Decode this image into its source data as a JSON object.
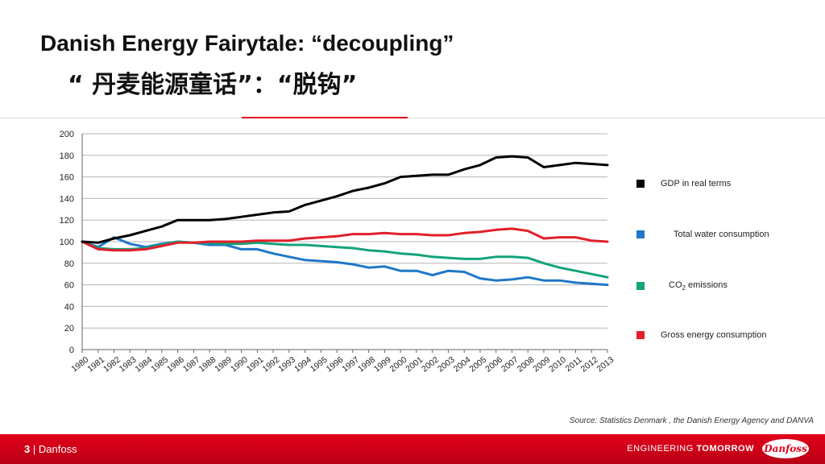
{
  "slide": {
    "title": "Danish Energy Fairytale: “decoupling”",
    "subtitle": "“ 丹麦能源童话”：“脱钩”",
    "source": "Source:  Statistics Denmark , the Danish Energy Agency and DANVA",
    "page_number": "3",
    "separator": "|",
    "company": "Danfoss",
    "tagline_light": "ENGINEERING ",
    "tagline_bold": "TOMORROW",
    "logo_text": "Danfoss"
  },
  "colors": {
    "accent": "#e2001a",
    "gdp": "#000000",
    "water": "#1f77c8",
    "co2": "#13a37a",
    "energy": "#e0202a"
  },
  "chart_data": {
    "type": "line",
    "title": "",
    "xlabel": "",
    "ylabel": "",
    "ylim": [
      0,
      200
    ],
    "yticks": [
      0,
      20,
      40,
      60,
      80,
      100,
      120,
      140,
      160,
      180,
      200
    ],
    "grid": true,
    "legend_position": "right",
    "x": [
      "1980",
      "1981",
      "1982",
      "1983",
      "1984",
      "1985",
      "1986",
      "1987",
      "1988",
      "1989",
      "1990",
      "1991",
      "1992",
      "1993",
      "1994",
      "1995",
      "1996",
      "1997",
      "1998",
      "1999",
      "2000",
      "2001",
      "2002",
      "2003",
      "2004",
      "2005",
      "2006",
      "2007",
      "2008",
      "2009",
      "2010",
      "2011",
      "2012",
      "2013"
    ],
    "series": [
      {
        "name": "GDP in real terms",
        "color": "#000000",
        "values": [
          100,
          99,
          103,
          106,
          110,
          114,
          120,
          120,
          120,
          121,
          123,
          125,
          127,
          128,
          134,
          138,
          142,
          147,
          150,
          154,
          160,
          161,
          162,
          162,
          167,
          171,
          178,
          179,
          178,
          169,
          171,
          173,
          172,
          171
        ]
      },
      {
        "name": "Total water consumption",
        "color": "#1f77c8",
        "values": [
          100,
          95,
          104,
          98,
          95,
          98,
          100,
          99,
          97,
          97,
          93,
          93,
          89,
          86,
          83,
          82,
          81,
          79,
          76,
          77,
          73,
          73,
          69,
          73,
          72,
          66,
          64,
          65,
          67,
          64,
          64,
          62,
          61,
          60
        ]
      },
      {
        "name": "CO2 emissions",
        "name_main": "CO",
        "name_sub": "2",
        "name_rest": " emissions",
        "color": "#13a37a",
        "values": [
          100,
          94,
          93,
          93,
          94,
          97,
          100,
          99,
          99,
          98,
          98,
          99,
          98,
          97,
          97,
          96,
          95,
          94,
          92,
          91,
          89,
          88,
          86,
          85,
          84,
          84,
          86,
          86,
          85,
          80,
          76,
          73,
          70,
          67
        ]
      },
      {
        "name": "Gross energy consumption",
        "color": "#e0202a",
        "values": [
          100,
          93,
          92,
          92,
          93,
          96,
          99,
          99,
          100,
          100,
          100,
          101,
          101,
          101,
          103,
          104,
          105,
          107,
          107,
          108,
          107,
          107,
          106,
          106,
          108,
          109,
          111,
          112,
          110,
          103,
          104,
          104,
          101,
          100
        ]
      }
    ]
  }
}
